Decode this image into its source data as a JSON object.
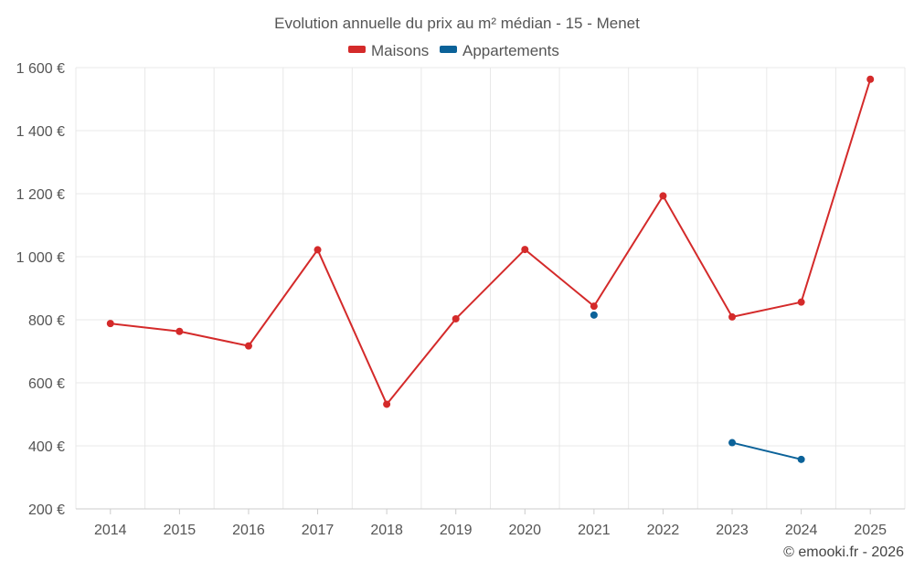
{
  "chart_data": {
    "type": "line",
    "title": "Evolution annuelle du prix au m² médian - 15 - Menet",
    "categories": [
      "2014",
      "2015",
      "2016",
      "2017",
      "2018",
      "2019",
      "2020",
      "2021",
      "2022",
      "2023",
      "2024",
      "2025"
    ],
    "series": [
      {
        "name": "Maisons",
        "color": "#d42a2a",
        "values": [
          788,
          763,
          717,
          1022,
          532,
          803,
          1023,
          843,
          1193,
          809,
          856,
          1563
        ]
      },
      {
        "name": "Appartements",
        "color": "#0b6299",
        "values": [
          null,
          null,
          null,
          null,
          null,
          null,
          null,
          815,
          null,
          410,
          357,
          null
        ]
      }
    ],
    "yticks": [
      200,
      400,
      600,
      800,
      1000,
      1200,
      1400,
      1600
    ],
    "ytick_labels": [
      "200 €",
      "400 €",
      "600 €",
      "800 €",
      "1 000 €",
      "1 200 €",
      "1 400 €",
      "1 600 €"
    ],
    "ylim": [
      200,
      1600
    ],
    "xlabel": "",
    "ylabel": "",
    "legend_position": "top-center",
    "grid": true
  },
  "credit": "© emooki.fr - 2026"
}
